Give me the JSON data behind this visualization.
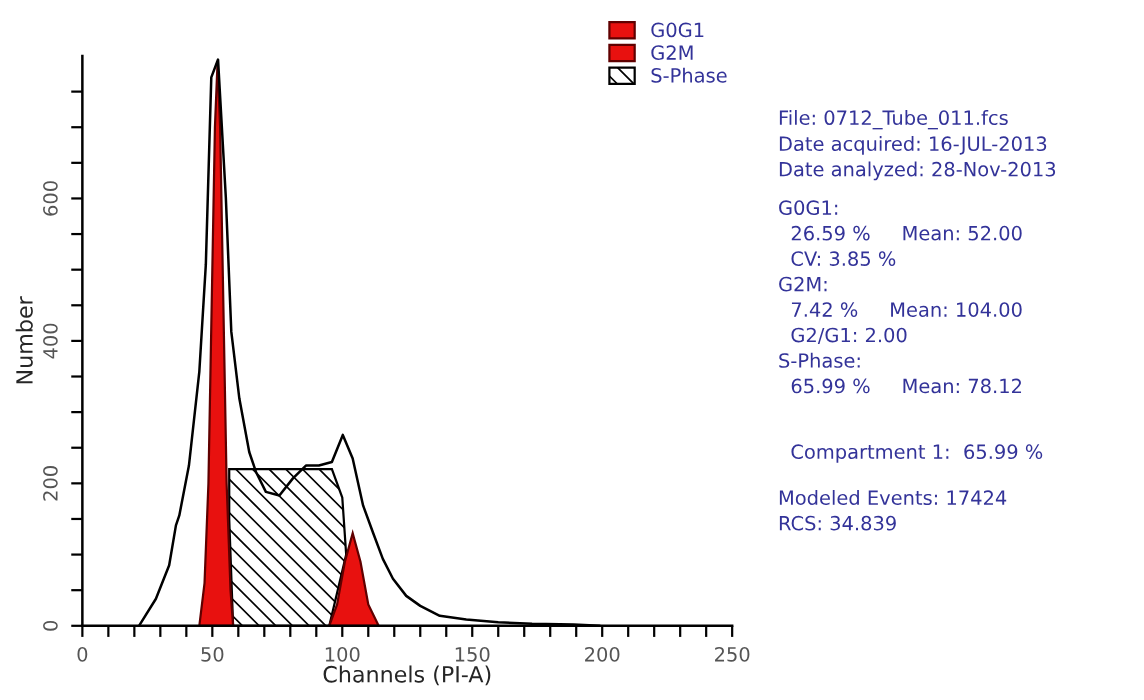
{
  "chart_data": {
    "type": "area",
    "xlabel": "Channels (PI-A)",
    "ylabel": "Number",
    "xlim": [
      0,
      250
    ],
    "ylim": [
      0,
      800
    ],
    "xticks": [
      0,
      {
        "value": 10,
        "label": null
      },
      {
        "value": 20,
        "label": null
      },
      {
        "value": 30,
        "label": null
      },
      {
        "value": 40,
        "label": null
      },
      50,
      {
        "value": 60,
        "label": null
      },
      {
        "value": 70,
        "label": null
      },
      {
        "value": 80,
        "label": null
      },
      {
        "value": 90,
        "label": null
      },
      100,
      {
        "value": 110,
        "label": null
      },
      {
        "value": 120,
        "label": null
      },
      {
        "value": 130,
        "label": null
      },
      {
        "value": 140,
        "label": null
      },
      150,
      {
        "value": 160,
        "label": null
      },
      {
        "value": 170,
        "label": null
      },
      {
        "value": 180,
        "label": null
      },
      {
        "value": 190,
        "label": null
      },
      200,
      {
        "value": 210,
        "label": null
      },
      {
        "value": 220,
        "label": null
      },
      {
        "value": 230,
        "label": null
      },
      {
        "value": 240,
        "label": null
      },
      250
    ],
    "yticks": [
      0,
      {
        "value": 50,
        "label": null
      },
      {
        "value": 100,
        "label": null
      },
      {
        "value": 150,
        "label": null
      },
      200,
      {
        "value": 250,
        "label": null
      },
      {
        "value": 300,
        "label": null
      },
      {
        "value": 350,
        "label": null
      },
      400,
      {
        "value": 450,
        "label": null
      },
      {
        "value": 500,
        "label": null
      },
      {
        "value": 550,
        "label": null
      },
      600,
      {
        "value": 650,
        "label": null
      },
      {
        "value": 700,
        "label": null
      },
      {
        "value": 750,
        "label": null
      }
    ],
    "series": [
      {
        "name": "G0G1",
        "color": "#e8110f",
        "x": [
          45,
          47,
          48.5,
          50,
          51,
          52,
          53,
          54,
          55.5,
          57,
          58
        ],
        "values": [
          0,
          60,
          200,
          500,
          700,
          790,
          700,
          500,
          200,
          50,
          0
        ]
      },
      {
        "name": "G2M",
        "color": "#e8110f",
        "x": [
          95,
          98,
          101,
          104,
          107,
          110,
          114
        ],
        "values": [
          0,
          30,
          90,
          130,
          90,
          30,
          0
        ]
      },
      {
        "name": "S-Phase",
        "color": "#000000",
        "x": [
          58,
          56.5,
          56.5,
          96,
          100,
          101.5,
          95
        ],
        "values": [
          0,
          150,
          220,
          220,
          180,
          100,
          0
        ]
      },
      {
        "type": "line",
        "color": "#000000",
        "x": [
          21.8,
          28.3,
          33.4,
          36,
          37.3,
          41,
          45,
          47.5,
          49.6,
          52.2,
          55.2,
          57.3,
          60.4,
          64.2,
          66.8,
          70.6,
          75.8,
          81,
          86,
          91,
          96,
          100.2,
          104,
          108,
          111.8,
          115.6,
          119.5,
          124.6,
          130,
          137.5,
          147.7,
          160,
          173,
          189,
          199
        ],
        "values": [
          0,
          38,
          85,
          141,
          155,
          225,
          357,
          507,
          770,
          795,
          601,
          413,
          319,
          244,
          216,
          188,
          183,
          207,
          225,
          225,
          230,
          268,
          235,
          169,
          131,
          94,
          66,
          42,
          28,
          14,
          9,
          5,
          3,
          2,
          0
        ]
      }
    ],
    "legend": "top right",
    "annotations": [
      "File: 0712_Tube_011.fcs\nDate acquired: 16-JUL-2013\nDate analyzed: 28-Nov-2013",
      "G0G1:\n  26.59 %     Mean: 52.00\n  CV: 3.85 %\nG2M:\n  7.42 %     Mean: 104.00\n  G2/G1: 2.00\nS-Phase:\n  65.99 %     Mean: 78.12",
      "  Compartment 1:  65.99 %",
      "Modeled Events: 17424\nRCS: 34.839"
    ]
  }
}
